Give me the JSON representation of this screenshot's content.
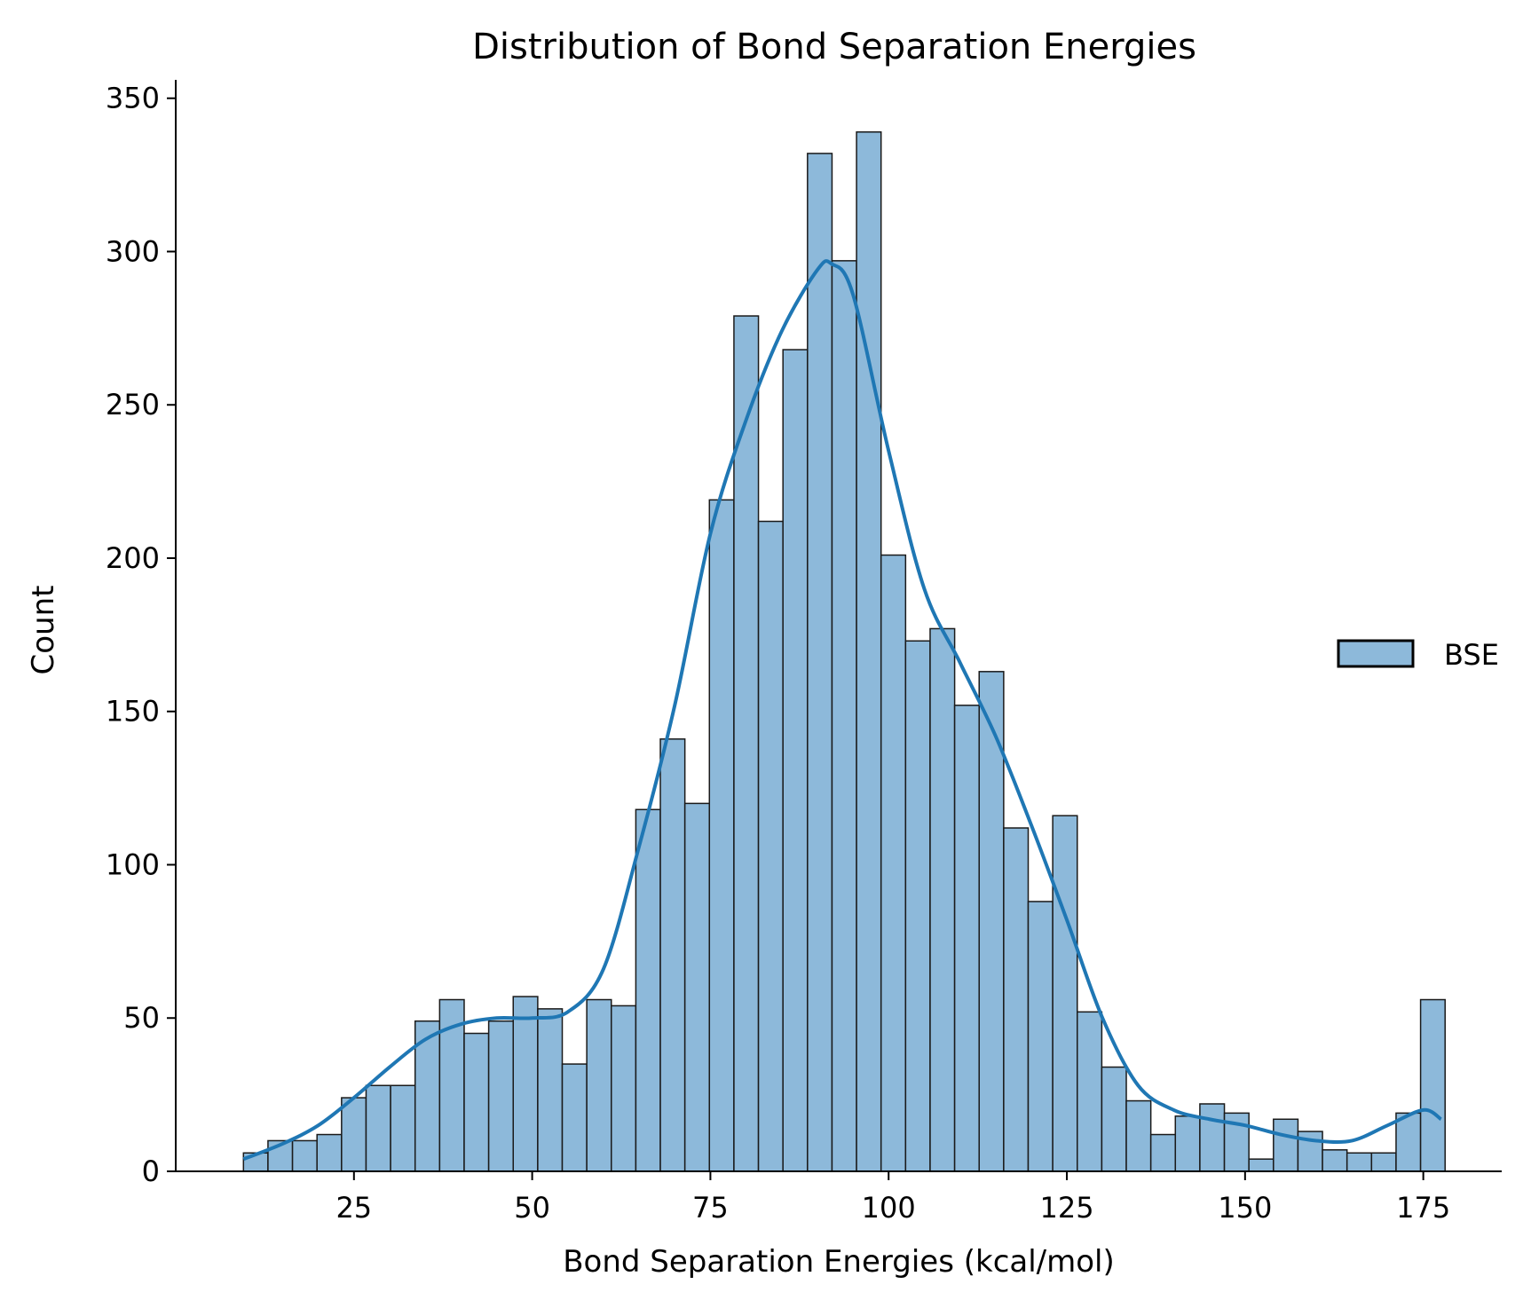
{
  "chart_data": {
    "type": "bar",
    "title": "Distribution of Bond Separation Energies",
    "xlabel": "Bond Separation Energies (kcal/mol)",
    "ylabel": "Count",
    "xlim": [
      0,
      186
    ],
    "ylim": [
      0,
      356
    ],
    "x_ticks": [
      25,
      50,
      75,
      100,
      125,
      150,
      175
    ],
    "y_ticks": [
      0,
      50,
      100,
      150,
      200,
      250,
      300,
      350
    ],
    "bin_start": 9.5,
    "bin_width": 3.44,
    "values": [
      6,
      10,
      10,
      12,
      24,
      28,
      28,
      49,
      56,
      45,
      49,
      57,
      53,
      35,
      56,
      54,
      118,
      141,
      120,
      219,
      279,
      212,
      268,
      332,
      297,
      339,
      201,
      173,
      177,
      152,
      163,
      112,
      88,
      116,
      52,
      34,
      23,
      12,
      18,
      22,
      19,
      4,
      17,
      13,
      7,
      6,
      6,
      19,
      56
    ],
    "kde": {
      "x": [
        9.5,
        15,
        20,
        25,
        30,
        35,
        40,
        45,
        50,
        55,
        60,
        65,
        70,
        75,
        80,
        85,
        90,
        92,
        95,
        100,
        105,
        110,
        115,
        120,
        125,
        130,
        135,
        140,
        145,
        150,
        155,
        160,
        165,
        170,
        175,
        177.5
      ],
      "y": [
        4,
        9,
        15,
        24,
        34,
        43,
        48,
        50,
        50,
        52,
        66,
        106,
        152,
        208,
        245,
        274,
        294,
        296,
        286,
        235,
        190,
        166,
        142,
        113,
        82,
        50,
        28,
        20,
        17,
        15,
        12,
        10,
        10,
        15,
        20,
        17
      ]
    },
    "series": [
      {
        "name": "BSE",
        "color": "#8db9da",
        "line_color": "#1f77b4"
      }
    ],
    "legend": {
      "position": "right"
    },
    "grid": false
  }
}
